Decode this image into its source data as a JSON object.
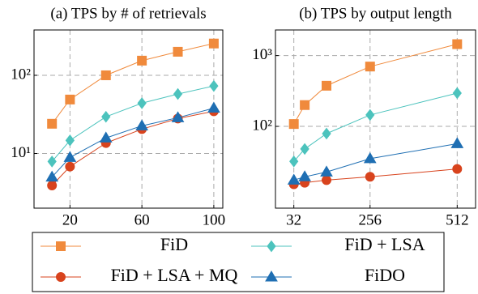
{
  "chart_data": [
    {
      "type": "line",
      "title": "(a) TPS by # of retrievals",
      "x": [
        10,
        20,
        40,
        60,
        80,
        100
      ],
      "xlim": [
        0,
        105
      ],
      "xticks": [
        20,
        60,
        100
      ],
      "ylim": [
        2,
        380
      ],
      "yscale": "log",
      "yticks": [
        {
          "value": 10,
          "label": "10¹"
        },
        {
          "value": 100,
          "label": "10²"
        }
      ],
      "grid": true,
      "series": [
        {
          "name": "FiD",
          "color": "#f08a3c",
          "marker": "square",
          "values": [
            24,
            49,
            100,
            154,
            200,
            255
          ]
        },
        {
          "name": "FiD + LSA",
          "color": "#4cc3bd",
          "marker": "diamond",
          "values": [
            7.9,
            14.7,
            29.5,
            44,
            57.6,
            73
          ]
        },
        {
          "name": "FiD + LSA + MQ",
          "color": "#d8431d",
          "marker": "circle",
          "values": [
            3.9,
            6.8,
            13.6,
            20.5,
            28,
            34.7
          ]
        },
        {
          "name": "FiDO",
          "color": "#1f6fb3",
          "marker": "triangle",
          "values": [
            5,
            8.9,
            15.8,
            22.6,
            28.7,
            38
          ]
        }
      ]
    },
    {
      "type": "line",
      "title": "(b) TPS by output length",
      "x": [
        32,
        64,
        128,
        256,
        512
      ],
      "xlim": [
        -22,
        566
      ],
      "xticks": [
        32,
        256,
        512
      ],
      "ylim": [
        7,
        2300
      ],
      "yscale": "log",
      "yticks": [
        {
          "value": 100,
          "label": "10²"
        },
        {
          "value": 1000,
          "label": "10³"
        }
      ],
      "grid": true,
      "series": [
        {
          "color": "#f08a3c",
          "marker": "square",
          "values": [
            108,
            200,
            375,
            700,
            1450
          ]
        },
        {
          "color": "#4cc3bd",
          "marker": "diamond",
          "values": [
            32,
            48,
            79,
            145,
            295
          ]
        },
        {
          "color": "#d8431d",
          "marker": "circle",
          "values": [
            15.2,
            16,
            17.4,
            19.4,
            25
          ]
        },
        {
          "color": "#1f6fb3",
          "marker": "triangle",
          "values": [
            17.4,
            19.4,
            22.7,
            35,
            57
          ]
        }
      ]
    }
  ]
}
